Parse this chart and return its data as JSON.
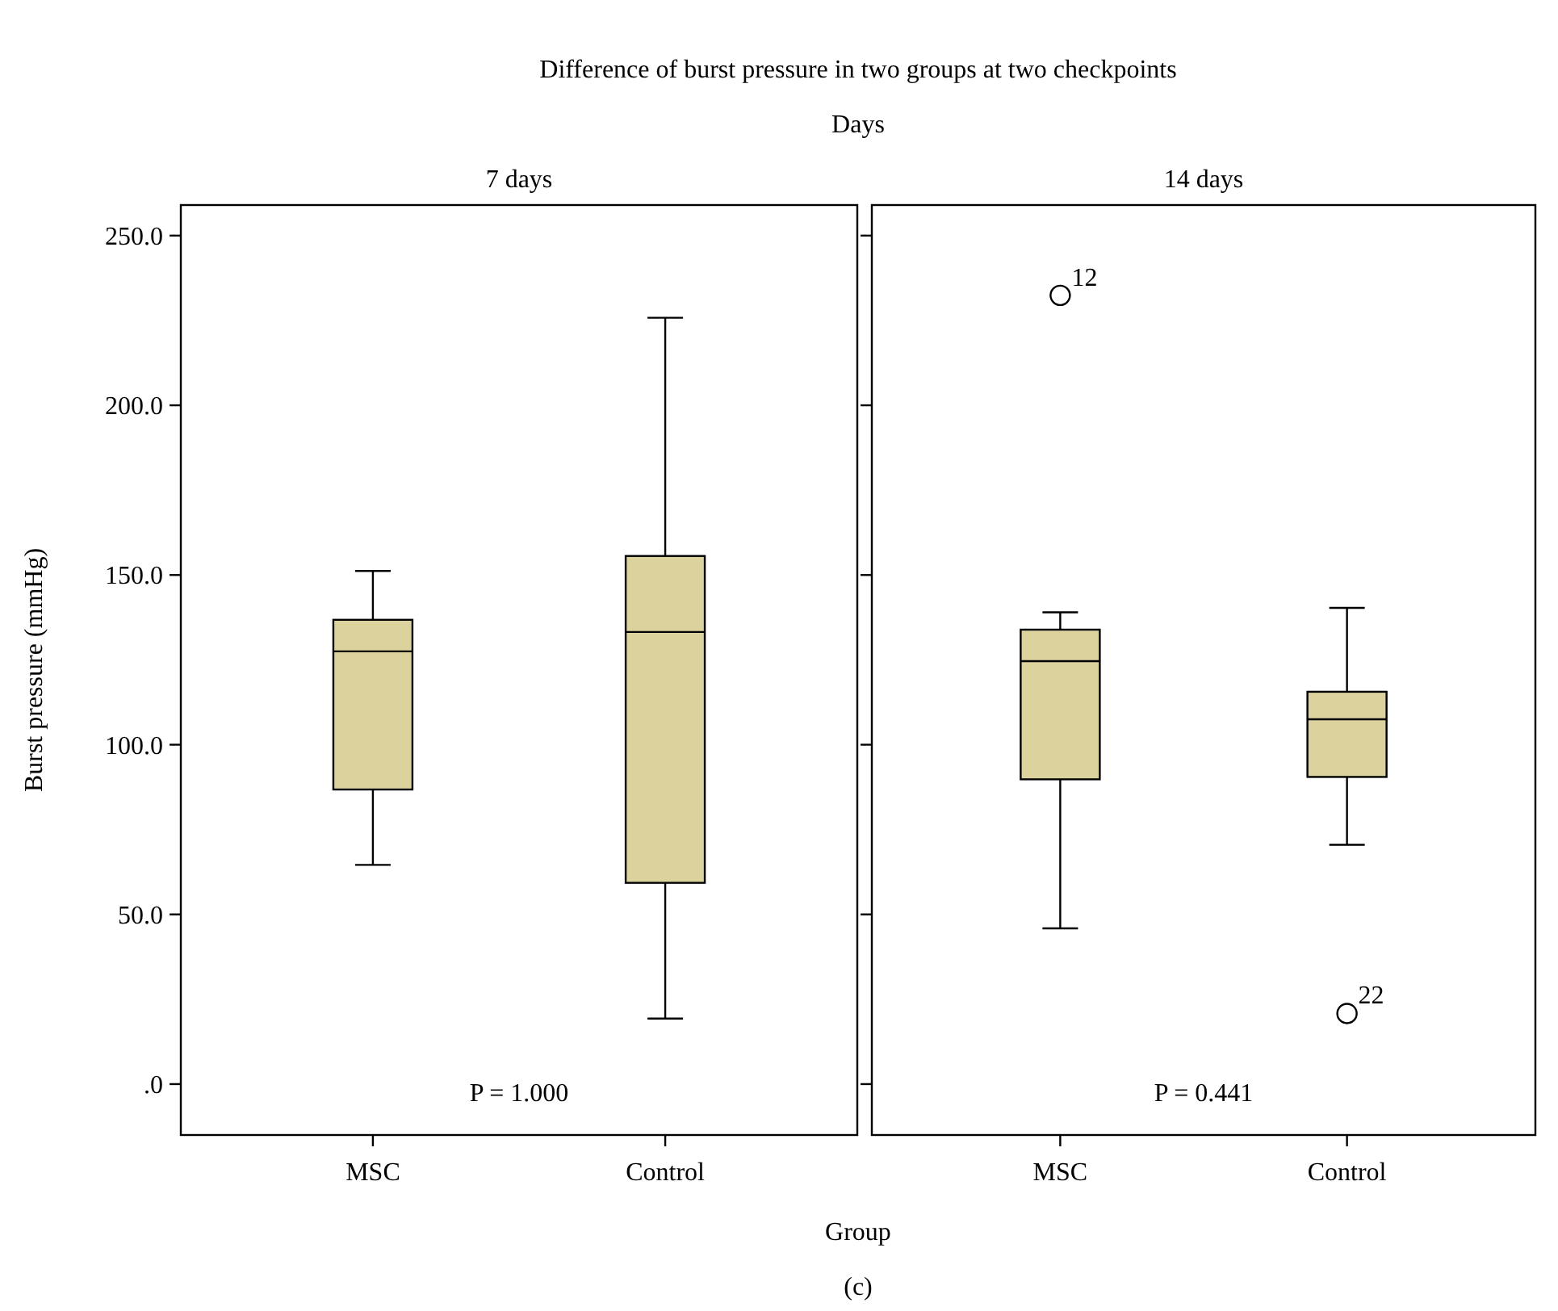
{
  "chart_data": [
    {
      "type": "box",
      "title": "7 days",
      "xlabel": "Group",
      "ylabel": "Burst pressure (mmHg)",
      "categories": [
        "MSC",
        "Control"
      ],
      "series": [
        {
          "color": "#dcd29e",
          "boxes": [
            {
              "low": 64.6,
              "q1": 86.8,
              "median": 127.5,
              "q3": 136.8,
              "high": 151.2
            },
            {
              "low": 19.3,
              "q1": 59.3,
              "median": 133.2,
              "q3": 155.6,
              "high": 225.8
            }
          ]
        }
      ],
      "ylim": [
        -15,
        259
      ],
      "yticks": [
        {
          "value": 0,
          "label": ".0"
        },
        {
          "value": 50,
          "label": "50.0"
        },
        {
          "value": 100,
          "label": "100.0"
        },
        {
          "value": 150,
          "label": "150.0"
        },
        {
          "value": 200,
          "label": "200.0"
        },
        {
          "value": 250,
          "label": "250.0"
        }
      ],
      "annotations": [
        "Difference of burst pressure in two groups at two checkpoints",
        "Days",
        "P = 1.000"
      ]
    },
    {
      "type": "box",
      "title": "14 days",
      "categories": [
        "MSC",
        "Control"
      ],
      "series": [
        {
          "color": "#dcd29e",
          "boxes": [
            {
              "low": 45.9,
              "q1": 89.8,
              "median": 124.6,
              "q3": 133.9,
              "high": 139.0,
              "outliers": [
                232.4
              ]
            },
            {
              "low": 70.5,
              "q1": 90.5,
              "median": 107.5,
              "q3": 115.6,
              "high": 140.3,
              "outliers": [
                20.8
              ]
            }
          ]
        }
      ],
      "ylim": [
        -15,
        259
      ],
      "yticks": [
        0,
        50,
        100,
        150,
        200,
        250
      ],
      "tick_labels": "x",
      "annotations": [
        "P = 0.441",
        "(c)",
        "12",
        "22"
      ]
    }
  ]
}
